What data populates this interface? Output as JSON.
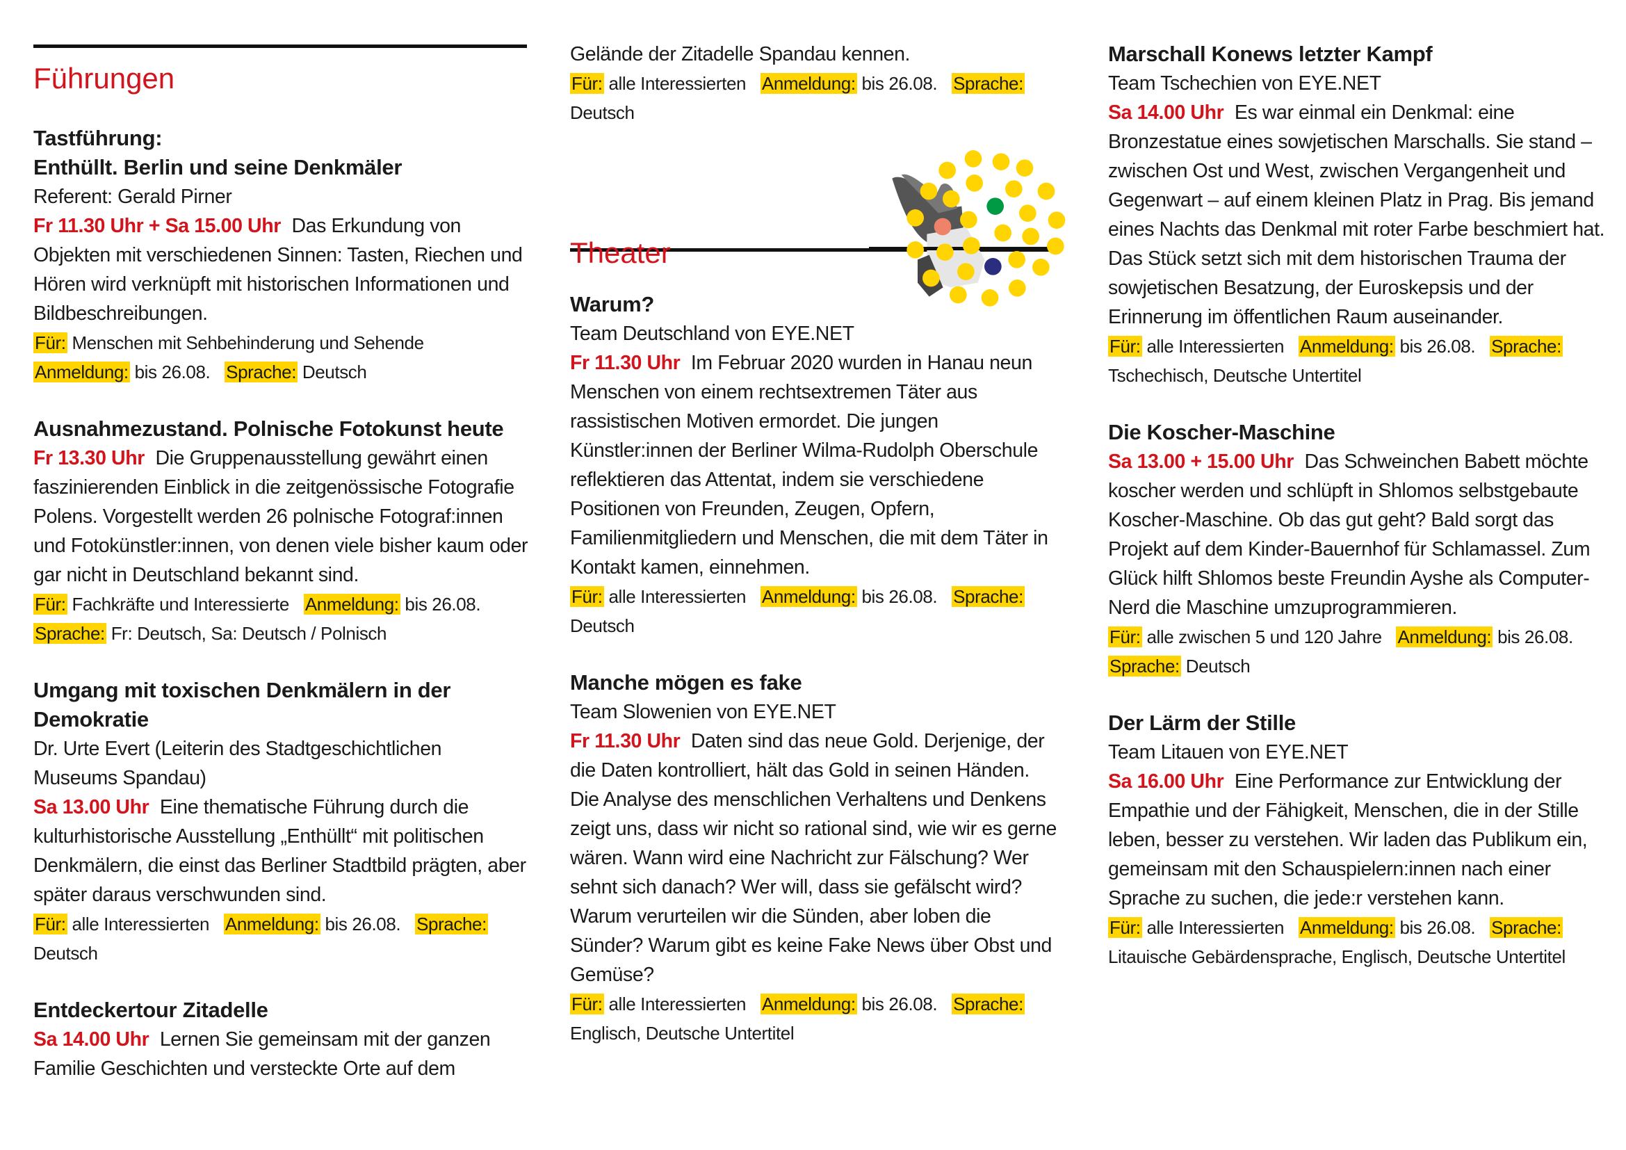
{
  "colors": {
    "accent_red": "#d2141c",
    "highlight_yellow": "#ffd400"
  },
  "sections": {
    "fuehrungen_title": "Führungen",
    "theater_title": "Theater"
  },
  "col1_events": [
    {
      "titles": [
        "Tastführung:",
        "Enthüllt. Berlin und seine Denkmäler"
      ],
      "subtitle": "Referent: Gerald Pirner",
      "time": "Fr 11.30 Uhr + Sa 15.00 Uhr",
      "text": "Das Erkundung von Objekten mit verschiedenen Sinnen: Tasten, Riechen und Hören wird verknüpft mit historischen Informationen und Bildbeschreibungen.",
      "meta": [
        {
          "label": "Für:",
          "value": "Menschen mit Sehbehinderung und Sehende"
        },
        {
          "label": "Anmeldung:",
          "value": "bis 26.08."
        },
        {
          "label": "Sprache:",
          "value": "Deutsch"
        }
      ]
    },
    {
      "titles": [
        "Ausnahmezustand. Polnische Fotokunst heute"
      ],
      "time": "Fr 13.30 Uhr",
      "text": "Die Gruppenausstellung gewährt einen faszinierenden Einblick in die zeitgenössische Fotografie Polens. Vorgestellt werden 26 polnische Fotograf:innen und Fotokünstler:innen, von denen viele bisher kaum oder gar nicht in Deutschland bekannt sind.",
      "meta": [
        {
          "label": "Für:",
          "value": "Fachkräfte und Interessierte"
        },
        {
          "label": "Anmeldung:",
          "value": "bis 26.08."
        },
        {
          "label": "Sprache:",
          "value": "Fr: Deutsch, Sa: Deutsch / Polnisch"
        }
      ]
    },
    {
      "titles": [
        "Umgang mit toxischen Denkmälern in der Demokratie"
      ],
      "subtitle": "Dr. Urte Evert (Leiterin des Stadtgeschichtlichen Museums Spandau)",
      "time": "Sa 13.00 Uhr",
      "text": "Eine thematische Führung durch die kulturhistorische Ausstellung „Enthüllt“ mit politischen Denkmälern, die einst das Berliner Stadtbild prägten, aber später daraus verschwunden sind.",
      "meta": [
        {
          "label": "Für:",
          "value": "alle Interessierten"
        },
        {
          "label": "Anmeldung:",
          "value": "bis 26.08."
        },
        {
          "label": "Sprache:",
          "value": "Deutsch"
        }
      ]
    },
    {
      "titles": [
        "Entdeckertour Zitadelle"
      ],
      "time": "Sa 14.00 Uhr",
      "text": "Lernen Sie gemeinsam mit der ganzen Familie Geschichten und versteckte Orte auf dem",
      "meta": []
    }
  ],
  "col2_continuation": {
    "text": "Gelände der Zitadelle Spandau kennen.",
    "meta": [
      {
        "label": "Für:",
        "value": "alle Interessierten"
      },
      {
        "label": "Anmeldung:",
        "value": "bis 26.08."
      },
      {
        "label": "Sprache:",
        "value": "Deutsch"
      }
    ]
  },
  "col2_events": [
    {
      "titles": [
        "Warum?"
      ],
      "subtitle": "Team Deutschland von EYE.NET",
      "time": "Fr 11.30 Uhr",
      "text": "Im Februar 2020 wurden in Hanau neun Menschen von einem rechtsextremen Täter aus rassistischen Motiven ermordet. Die jungen Künstler:innen der Berliner Wilma-Rudolph Oberschule reflektieren das Attentat, indem sie verschiedene Positionen von Freunden, Zeugen, Opfern, Familienmitgliedern und Menschen, die mit dem Täter in Kontakt kamen, einnehmen.",
      "meta": [
        {
          "label": "Für:",
          "value": "alle Interessierten"
        },
        {
          "label": "Anmeldung:",
          "value": "bis 26.08."
        },
        {
          "label": "Sprache:",
          "value": "Deutsch"
        }
      ]
    },
    {
      "titles": [
        "Manche mögen es fake"
      ],
      "subtitle": "Team Slowenien von EYE.NET",
      "time": "Fr 11.30 Uhr",
      "text": "Daten sind das neue Gold. Derjenige, der die Daten kontrolliert, hält das Gold in seinen Händen. Die Analyse des menschlichen Verhaltens und Denkens zeigt uns, dass wir nicht so rational sind, wie wir es gerne wären. Wann wird eine Nachricht zur Fälschung? Wer sehnt sich danach? Wer will, dass sie gefälscht wird? Warum verurteilen wir die Sünden, aber loben die Sünder? Warum gibt es keine Fake News über Obst und Gemüse?",
      "meta": [
        {
          "label": "Für:",
          "value": "alle Interessierten"
        },
        {
          "label": "Anmeldung:",
          "value": "bis 26.08."
        },
        {
          "label": "Sprache:",
          "value": "Englisch, Deutsche Untertitel"
        }
      ]
    }
  ],
  "col3_events": [
    {
      "titles": [
        "Marschall Konews letzter Kampf"
      ],
      "subtitle": "Team Tschechien von EYE.NET",
      "time": "Sa 14.00 Uhr",
      "text": "Es war einmal ein Denkmal: eine Bronzestatue eines sowjetischen Marschalls. Sie stand – zwischen Ost und West, zwischen Vergangenheit und Gegenwart – auf einem kleinen Platz in Prag. Bis jemand eines Nachts das Denkmal mit roter Farbe beschmiert hat. Das Stück setzt sich mit dem historischen Trauma der sowjetischen Besatzung, der Euroskepsis und der Erinnerung im öffentlichen Raum auseinander.",
      "meta": [
        {
          "label": "Für:",
          "value": "alle Interessierten"
        },
        {
          "label": "Anmeldung:",
          "value": "bis 26.08."
        },
        {
          "label": "Sprache:",
          "value": "Tschechisch, Deutsche Untertitel"
        }
      ]
    },
    {
      "titles": [
        "Die Koscher-Maschine"
      ],
      "time": "Sa 13.00 + 15.00 Uhr",
      "text": "Das Schweinchen Babett möchte koscher werden und schlüpft in Shlomos selbstgebaute Koscher-Maschine. Ob das gut geht? Bald sorgt das Projekt auf dem Kinder-Bauernhof für Schlamassel. Zum Glück hilft Shlomos beste Freundin Ayshe als Computer-Nerd die Maschine umzuprogrammieren.",
      "meta": [
        {
          "label": "Für:",
          "value": "alle zwischen 5 und 120 Jahre"
        },
        {
          "label": "Anmeldung:",
          "value": "bis 26.08."
        },
        {
          "label": "Sprache:",
          "value": "Deutsch"
        }
      ]
    },
    {
      "titles": [
        "Der Lärm der Stille"
      ],
      "subtitle": "Team Litauen von EYE.NET",
      "time": "Sa 16.00 Uhr",
      "text": "Eine Performance zur Entwicklung der Empathie und der Fähigkeit, Menschen, die in der Stille leben, besser zu verstehen. Wir laden das Publikum ein, gemeinsam mit den Schauspielern:innen nach einer Sprache zu suchen, die jede:r verstehen kann.",
      "meta": [
        {
          "label": "Für:",
          "value": "alle Interessierten"
        },
        {
          "label": "Anmeldung:",
          "value": "bis 26.08."
        },
        {
          "label": "Sprache:",
          "value": "Litauische Gebärdensprache, Englisch, Deutsche Untertitel"
        }
      ]
    }
  ],
  "graphic": {
    "icon": "praying-hands-with-dots-illustration",
    "dot_colors": [
      "#ffd400",
      "#009a44",
      "#ef8369",
      "#2b2d7f"
    ]
  }
}
